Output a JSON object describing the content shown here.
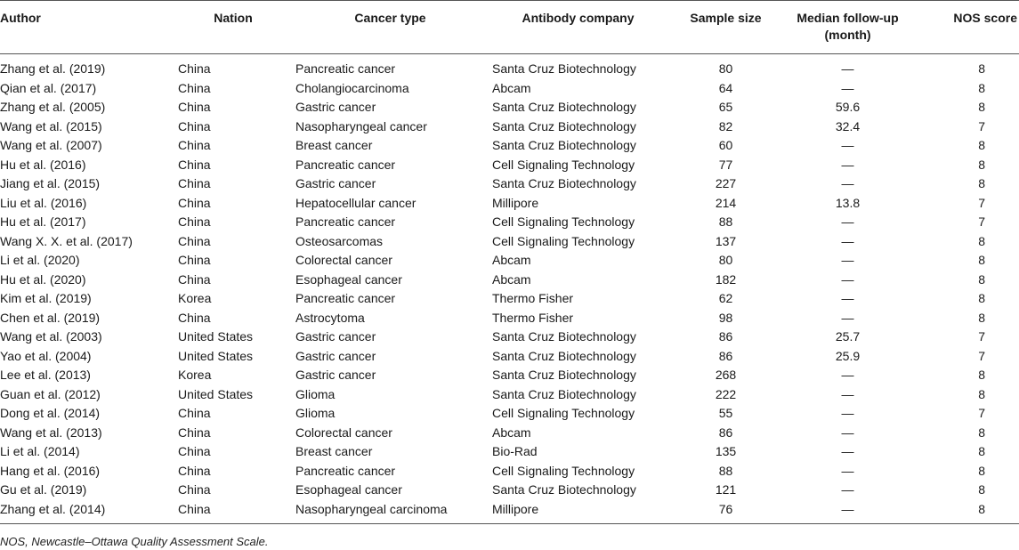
{
  "table": {
    "headers": {
      "author": "Author",
      "nation": "Nation",
      "cancer_type": "Cancer type",
      "antibody_company": "Antibody company",
      "sample_size": "Sample size",
      "median_follow_up_line1": "Median follow-up",
      "median_follow_up_line2": "(month)",
      "nos_score": "NOS score"
    },
    "rows": [
      [
        "Zhang et al. (2019)",
        "China",
        "Pancreatic cancer",
        "Santa Cruz Biotechnology",
        "80",
        "—",
        "8"
      ],
      [
        "Qian et al. (2017)",
        "China",
        "Cholangiocarcinoma",
        "Abcam",
        "64",
        "—",
        "8"
      ],
      [
        "Zhang et al. (2005)",
        "China",
        "Gastric cancer",
        "Santa Cruz Biotechnology",
        "65",
        "59.6",
        "8"
      ],
      [
        "Wang et al. (2015)",
        "China",
        "Nasopharyngeal cancer",
        "Santa Cruz Biotechnology",
        "82",
        "32.4",
        "7"
      ],
      [
        "Wang et al. (2007)",
        "China",
        "Breast cancer",
        "Santa Cruz Biotechnology",
        "60",
        "—",
        "8"
      ],
      [
        "Hu et al. (2016)",
        "China",
        "Pancreatic cancer",
        "Cell Signaling Technology",
        "77",
        "—",
        "8"
      ],
      [
        "Jiang et al. (2015)",
        "China",
        "Gastric cancer",
        "Santa Cruz Biotechnology",
        "227",
        "—",
        "8"
      ],
      [
        "Liu et al. (2016)",
        "China",
        "Hepatocellular cancer",
        "Millipore",
        "214",
        "13.8",
        "7"
      ],
      [
        "Hu et al. (2017)",
        "China",
        "Pancreatic cancer",
        "Cell Signaling Technology",
        "88",
        "—",
        "7"
      ],
      [
        "Wang X. X. et al. (2017)",
        "China",
        "Osteosarcomas",
        "Cell Signaling Technology",
        "137",
        "—",
        "8"
      ],
      [
        "Li et al. (2020)",
        "China",
        "Colorectal cancer",
        "Abcam",
        "80",
        "—",
        "8"
      ],
      [
        "Hu et al. (2020)",
        "China",
        "Esophageal cancer",
        "Abcam",
        "182",
        "—",
        "8"
      ],
      [
        "Kim et al. (2019)",
        "Korea",
        "Pancreatic cancer",
        "Thermo Fisher",
        "62",
        "—",
        "8"
      ],
      [
        "Chen et al. (2019)",
        "China",
        "Astrocytoma",
        "Thermo Fisher",
        "98",
        "—",
        "8"
      ],
      [
        "Wang et al. (2003)",
        "United States",
        "Gastric cancer",
        "Santa Cruz Biotechnology",
        "86",
        "25.7",
        "7"
      ],
      [
        "Yao et al. (2004)",
        "United States",
        "Gastric cancer",
        "Santa Cruz Biotechnology",
        "86",
        "25.9",
        "7"
      ],
      [
        "Lee et al. (2013)",
        "Korea",
        "Gastric cancer",
        "Santa Cruz Biotechnology",
        "268",
        "—",
        "8"
      ],
      [
        "Guan et al. (2012)",
        "United States",
        "Glioma",
        "Santa Cruz Biotechnology",
        "222",
        "—",
        "8"
      ],
      [
        "Dong et al. (2014)",
        "China",
        "Glioma",
        "Cell Signaling Technology",
        "55",
        "—",
        "7"
      ],
      [
        "Wang et al. (2013)",
        "China",
        "Colorectal cancer",
        "Abcam",
        "86",
        "—",
        "8"
      ],
      [
        "Li et al. (2014)",
        "China",
        "Breast cancer",
        "Bio-Rad",
        "135",
        "—",
        "8"
      ],
      [
        "Hang et al. (2016)",
        "China",
        "Pancreatic cancer",
        "Cell Signaling Technology",
        "88",
        "—",
        "8"
      ],
      [
        "Gu et al. (2019)",
        "China",
        "Esophageal cancer",
        "Santa Cruz Biotechnology",
        "121",
        "—",
        "8"
      ],
      [
        "Zhang et al. (2014)",
        "China",
        "Nasopharyngeal carcinoma",
        "Millipore",
        "76",
        "—",
        "8"
      ]
    ]
  },
  "footnote": "NOS, Newcastle–Ottawa Quality Assessment Scale."
}
